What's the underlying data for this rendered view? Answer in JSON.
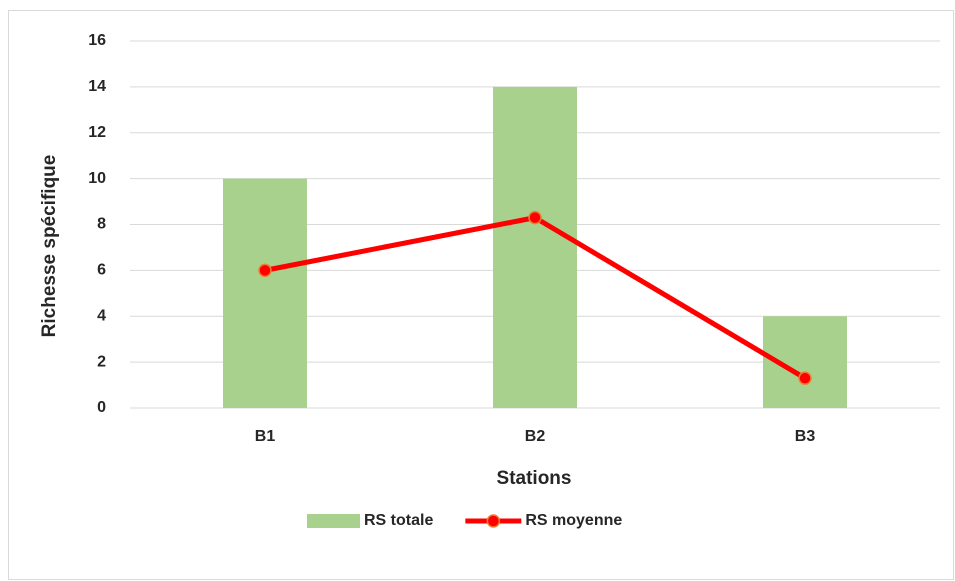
{
  "chart_data": {
    "type": "combo",
    "categories": [
      "B1",
      "B2",
      "B3"
    ],
    "series": [
      {
        "name": "RS totale",
        "type": "bar",
        "color": "#a9d18e",
        "values": [
          10,
          14,
          4
        ]
      },
      {
        "name": "RS moyenne",
        "type": "line",
        "color": "#ff0000",
        "values": [
          6,
          8.3,
          1.3
        ]
      }
    ],
    "ylim": [
      0,
      16
    ],
    "yticks": [
      0,
      2,
      4,
      6,
      8,
      10,
      12,
      14,
      16
    ],
    "xlabel": "Stations",
    "ylabel": "Richesse spécifique",
    "grid": true,
    "legend": "bottom"
  }
}
